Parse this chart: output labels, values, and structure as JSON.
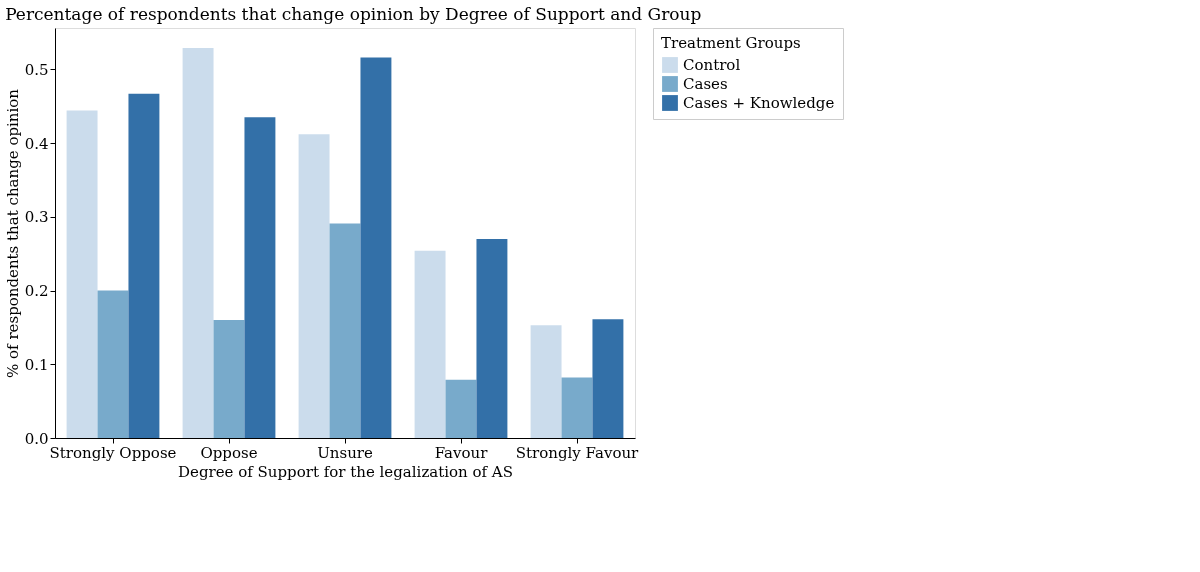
{
  "chart_data": {
    "type": "bar",
    "title": "Percentage of respondents that change opinion by Degree of Support and Group",
    "xlabel": "Degree of Support for the legalization of AS",
    "ylabel": "% of respondents that change opinion",
    "legend_title": "Treatment Groups",
    "categories": [
      "Strongly Oppose",
      "Oppose",
      "Unsure",
      "Favour",
      "Strongly Favour"
    ],
    "series": [
      {
        "name": "Control",
        "color": "#cbdcec",
        "values": [
          0.444,
          0.529,
          0.412,
          0.254,
          0.153
        ]
      },
      {
        "name": "Cases",
        "color": "#78aacb",
        "values": [
          0.2,
          0.16,
          0.291,
          0.079,
          0.082
        ]
      },
      {
        "name": "Cases + Knowledge",
        "color": "#3370a8",
        "values": [
          0.467,
          0.435,
          0.516,
          0.27,
          0.161
        ]
      }
    ],
    "ylim": [
      0,
      0.556
    ],
    "yticks": [
      {
        "value": 0,
        "label": "0.0"
      },
      0.1,
      0.2,
      0.3,
      0.4,
      0.5
    ],
    "grid": false,
    "legend": "top right"
  }
}
